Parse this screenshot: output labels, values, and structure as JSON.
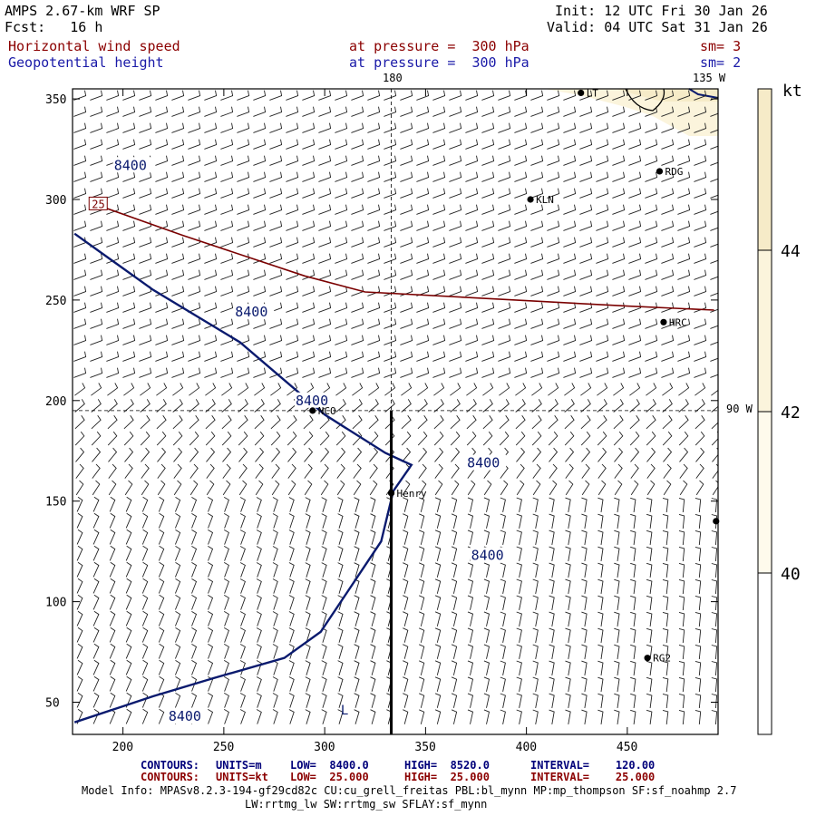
{
  "header": {
    "model_title": "AMPS 2.67-km WRF SP",
    "forecast": "Fcst:   16 h",
    "init": "Init: 12 UTC Fri 30 Jan 26",
    "valid": "Valid: 04 UTC Sat 31 Jan 26",
    "field1_name": "Horizontal wind speed",
    "field1_level": "at pressure =  300 hPa",
    "field1_sm": "sm= 3",
    "field2_name": "Geopotential height",
    "field2_level": "at pressure =  300 hPa",
    "field2_sm": "sm= 2"
  },
  "map_labels": {
    "meridian_180": "180",
    "meridian_135w": "135 W",
    "meridian_90w": "90 W"
  },
  "footer": {
    "row1": {
      "contours": "CONTOURS:",
      "units": "UNITS=m",
      "low": "LOW=  8400.0",
      "high": "HIGH=  8520.0",
      "interval": "INTERVAL=    120.00"
    },
    "row2": {
      "contours": "CONTOURS:",
      "units": "UNITS=kt",
      "low": "LOW=  25.000",
      "high": "HIGH=  25.000",
      "interval": "INTERVAL=    25.000"
    },
    "model_info": "Model Info: MPASv8.2.3-194-gf29cd82c CU:cu_grell_freitas PBL:bl_mynn MP:mp_thompson SF:sf_noahmp 2.7",
    "model_info2": "LW:rrtmg_lw SW:rrtmg_sw SFLAY:sf_mynn"
  },
  "colors": {
    "height_contour": "#0a1a6e",
    "speed_contour": "#7a0000",
    "shade_44": "#f6ebc8",
    "shade_42": "#fbf4dc",
    "shade_40": "#fefaec"
  },
  "chart_data": {
    "type": "contour-map",
    "title": "Horizontal wind speed / Geopotential height at 300 hPa",
    "xlim": [
      175,
      495
    ],
    "ylim": [
      34,
      355
    ],
    "x_ticks": [
      200,
      250,
      300,
      350,
      400,
      450
    ],
    "y_ticks": [
      50,
      100,
      150,
      200,
      250,
      300,
      350
    ],
    "colorbar": {
      "unit": "kt",
      "ticks": [
        40,
        42,
        44
      ]
    },
    "height_contours": [
      {
        "level_label": "8400",
        "labels_at": [
          [
            205,
            317
          ],
          [
            265,
            244
          ],
          [
            295,
            200
          ],
          [
            380,
            169
          ],
          [
            382,
            123
          ],
          [
            232,
            43
          ]
        ],
        "points": [
          [
            176,
            283
          ],
          [
            215,
            255
          ],
          [
            258,
            229
          ],
          [
            300,
            193
          ],
          [
            330,
            174
          ],
          [
            343,
            168
          ],
          [
            334,
            155
          ],
          [
            328,
            130
          ],
          [
            310,
            103
          ],
          [
            298,
            85
          ],
          [
            280,
            72
          ],
          [
            245,
            62
          ],
          [
            215,
            53
          ],
          [
            176,
            40
          ]
        ]
      }
    ],
    "speed_contours": [
      {
        "level_label": "25",
        "points": [
          [
            185,
            298
          ],
          [
            230,
            282
          ],
          [
            290,
            262
          ],
          [
            320,
            254
          ],
          [
            450,
            247
          ],
          [
            493,
            245
          ]
        ]
      }
    ],
    "cross_section": {
      "x": 333,
      "y_from": 34,
      "y_to": 195
    },
    "stations": [
      {
        "name": "KLN",
        "x": 402,
        "y": 300
      },
      {
        "name": "RDG",
        "x": 466,
        "y": 314
      },
      {
        "name": "HRC",
        "x": 468,
        "y": 239
      },
      {
        "name": "NCO",
        "x": 294,
        "y": 195
      },
      {
        "name": "Henry",
        "x": 333,
        "y": 154
      },
      {
        "name": "RG2",
        "x": 460,
        "y": 72
      },
      {
        "name": "LT",
        "x": 427,
        "y": 353
      },
      {
        "name": "",
        "x": 494,
        "y": 140
      }
    ],
    "low_marker": {
      "text": "L",
      "x": 308,
      "y": 44
    },
    "graticule": {
      "lon_180_x": 333,
      "lon_90w_y": 195
    }
  }
}
